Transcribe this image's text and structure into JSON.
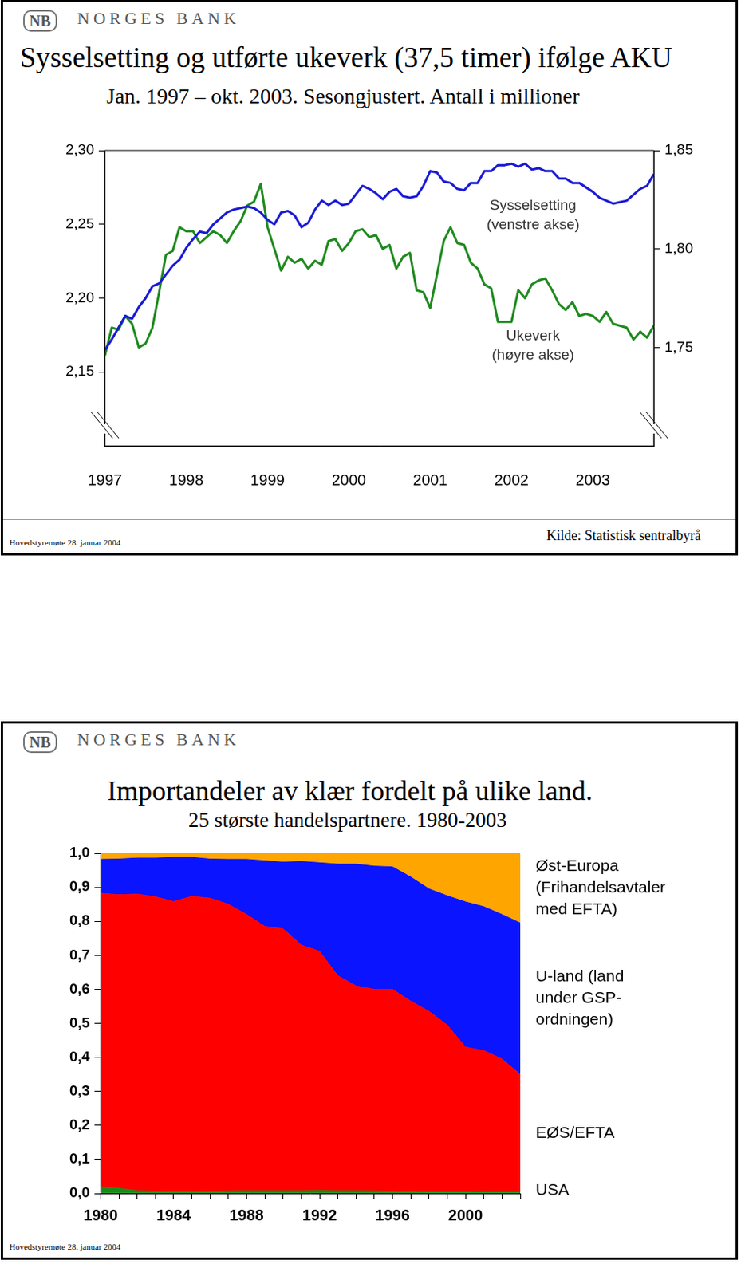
{
  "chart_data": [
    {
      "type": "line",
      "logo": [
        "NB",
        "NORGES BANK"
      ],
      "title": "Sysselsetting og utførte ukeverk (37,5 timer) ifølge AKU",
      "subtitle": "Jan. 1997 – okt. 2003. Sesongjustert. Antall i millioner",
      "categories": [
        "1997",
        null,
        null,
        null,
        null,
        null,
        null,
        null,
        null,
        null,
        null,
        null,
        "1998",
        null,
        null,
        null,
        null,
        null,
        null,
        null,
        null,
        null,
        null,
        null,
        "1999",
        null,
        null,
        null,
        null,
        null,
        null,
        null,
        null,
        null,
        null,
        null,
        "2000",
        null,
        null,
        null,
        null,
        null,
        null,
        null,
        null,
        null,
        null,
        null,
        "2001",
        null,
        null,
        null,
        null,
        null,
        null,
        null,
        null,
        null,
        null,
        null,
        "2002",
        null,
        null,
        null,
        null,
        null,
        null,
        null,
        null,
        null,
        null,
        null,
        "2003",
        null,
        null,
        null,
        null,
        null,
        null,
        null,
        null,
        null
      ],
      "series": [
        {
          "name": "Sysselsetting\n(venstre akse)",
          "color": "#1a1ad6",
          "axis": "y",
          "values": [
            2.165,
            2.172,
            2.18,
            2.188,
            2.186,
            2.194,
            2.2,
            2.208,
            2.21,
            2.216,
            2.222,
            2.226,
            2.234,
            2.24,
            2.245,
            2.244,
            2.25,
            2.254,
            2.258,
            2.26,
            2.261,
            2.262,
            2.261,
            2.258,
            2.253,
            2.25,
            2.258,
            2.259,
            2.256,
            2.248,
            2.251,
            2.26,
            2.266,
            2.263,
            2.266,
            2.263,
            2.264,
            2.27,
            2.276,
            2.274,
            2.271,
            2.267,
            2.272,
            2.274,
            2.269,
            2.268,
            2.269,
            2.276,
            2.286,
            2.285,
            2.279,
            2.278,
            2.274,
            2.273,
            2.278,
            2.278,
            2.286,
            2.286,
            2.29,
            2.29,
            2.291,
            2.289,
            2.291,
            2.287,
            2.288,
            2.286,
            2.286,
            2.281,
            2.281,
            2.278,
            2.278,
            2.275,
            2.272,
            2.268,
            2.266,
            2.264,
            2.265,
            2.266,
            2.27,
            2.274,
            2.276,
            2.284
          ]
        },
        {
          "name": "Ukeverk\n(høyre akse)",
          "color": "#1f8a1f",
          "axis": "y2",
          "values": [
            1.746,
            1.76,
            1.759,
            1.766,
            1.762,
            1.75,
            1.752,
            1.76,
            1.778,
            1.797,
            1.799,
            1.811,
            1.809,
            1.809,
            1.803,
            1.806,
            1.809,
            1.807,
            1.803,
            1.809,
            1.814,
            1.822,
            1.824,
            1.833,
            1.811,
            1.8,
            1.789,
            1.796,
            1.793,
            1.795,
            1.79,
            1.794,
            1.792,
            1.804,
            1.805,
            1.799,
            1.803,
            1.809,
            1.81,
            1.806,
            1.807,
            1.8,
            1.802,
            1.79,
            1.796,
            1.798,
            1.779,
            1.778,
            1.77,
            1.787,
            1.804,
            1.811,
            1.803,
            1.802,
            1.793,
            1.79,
            1.782,
            1.78,
            1.763,
            1.763,
            1.763,
            1.779,
            1.775,
            1.782,
            1.784,
            1.785,
            1.779,
            1.772,
            1.769,
            1.773,
            1.766,
            1.767,
            1.766,
            1.763,
            1.768,
            1.762,
            1.761,
            1.76,
            1.754,
            1.758,
            1.755,
            1.761
          ]
        }
      ],
      "ylim": [
        2.1,
        2.3
      ],
      "yticks": [
        {
          "value": 2.15,
          "label": "2,15"
        },
        {
          "value": 2.2,
          "label": "2,20"
        },
        {
          "value": 2.25,
          "label": "2,25"
        },
        {
          "value": 2.3,
          "label": "2,30"
        }
      ],
      "y2lim": [
        1.7,
        1.85
      ],
      "y2ticks": [
        {
          "value": 1.75,
          "label": "1,75"
        },
        {
          "value": 1.8,
          "label": "1,80"
        },
        {
          "value": 1.85,
          "label": "1,85"
        }
      ],
      "grid": false,
      "note": "Hovedstyremøte 28. januar 2004",
      "source": "Kilde: Statistisk sentralbyrå"
    },
    {
      "type": "area",
      "logo": [
        "NB",
        "NORGES BANK"
      ],
      "title": "Importandeler av klær fordelt på ulike land.",
      "subtitle": "25 største handelspartnere. 1980-2003",
      "categories": [
        "1980",
        null,
        null,
        null,
        "1984",
        null,
        null,
        null,
        "1988",
        null,
        null,
        null,
        "1992",
        null,
        null,
        null,
        "1996",
        null,
        null,
        null,
        "2000",
        null,
        null,
        null
      ],
      "series": [
        {
          "name": "USA",
          "color": "#1a8a1a",
          "values": [
            0.02,
            0.015,
            0.008,
            0.006,
            0.005,
            0.005,
            0.006,
            0.007,
            0.008,
            0.008,
            0.008,
            0.008,
            0.009,
            0.008,
            0.008,
            0.007,
            0.006,
            0.005,
            0.004,
            0.004,
            0.004,
            0.003,
            0.003,
            0.003
          ]
        },
        {
          "name": "EØS/EFTA",
          "color": "#ff0000",
          "values": [
            0.862,
            0.863,
            0.872,
            0.866,
            0.853,
            0.868,
            0.862,
            0.843,
            0.812,
            0.777,
            0.77,
            0.722,
            0.703,
            0.632,
            0.602,
            0.593,
            0.594,
            0.56,
            0.531,
            0.491,
            0.426,
            0.417,
            0.392,
            0.347
          ]
        },
        {
          "name": "U-land (land\nunder GSP-\nordningen)",
          "color": "#0a14ff",
          "values": [
            0.1,
            0.105,
            0.106,
            0.114,
            0.13,
            0.115,
            0.115,
            0.132,
            0.162,
            0.193,
            0.196,
            0.246,
            0.26,
            0.328,
            0.358,
            0.362,
            0.36,
            0.365,
            0.36,
            0.38,
            0.427,
            0.423,
            0.425,
            0.445
          ]
        },
        {
          "name": "Øst-Europa\n(Frihandelsavtaler\nmed EFTA)",
          "color": "#ffa500",
          "values": [
            0.018,
            0.017,
            0.014,
            0.014,
            0.012,
            0.012,
            0.017,
            0.018,
            0.018,
            0.022,
            0.026,
            0.024,
            0.028,
            0.032,
            0.032,
            0.038,
            0.04,
            0.07,
            0.105,
            0.125,
            0.143,
            0.157,
            0.18,
            0.205
          ]
        }
      ],
      "ylim": [
        0,
        1
      ],
      "yticks": [
        {
          "value": 0,
          "label": "0,0"
        },
        {
          "value": 0.1,
          "label": "0,1"
        },
        {
          "value": 0.2,
          "label": "0,2"
        },
        {
          "value": 0.3,
          "label": "0,3"
        },
        {
          "value": 0.4,
          "label": "0,4"
        },
        {
          "value": 0.5,
          "label": "0,5"
        },
        {
          "value": 0.6,
          "label": "0,6"
        },
        {
          "value": 0.7,
          "label": "0,7"
        },
        {
          "value": 0.8,
          "label": "0,8"
        },
        {
          "value": 0.9,
          "label": "0,9"
        },
        {
          "value": 1,
          "label": "1,0"
        }
      ],
      "stacked": true,
      "grid": false,
      "note": "Hovedstyremøte 28. januar 2004"
    }
  ]
}
